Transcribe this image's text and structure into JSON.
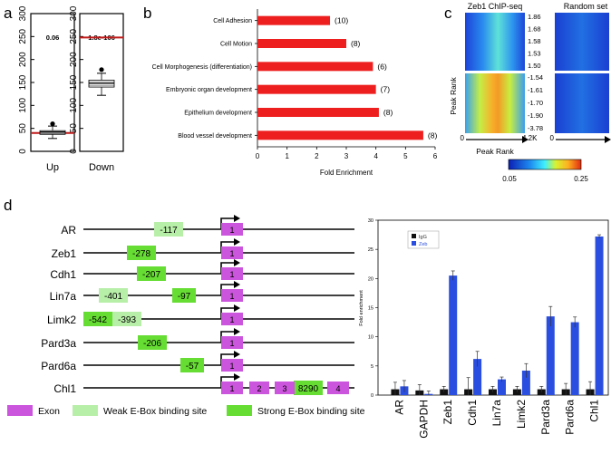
{
  "panel_labels": {
    "a": "a",
    "b": "b",
    "c": "c",
    "d": "d"
  },
  "colors": {
    "red_line": "#c01a1a",
    "bar_red": "#ee1f1f",
    "exon": "#cc55dd",
    "weak_site": "#b8efa8",
    "strong_site": "#66dd33",
    "igg": "#111111",
    "zeb": "#2a4ee0"
  },
  "chart_data": [
    {
      "type": "box",
      "panel": "a",
      "yticks": [
        "0",
        "50",
        "100",
        "150",
        "200",
        "250",
        "300"
      ],
      "ylim": [
        0,
        300
      ],
      "boxes": [
        {
          "name": "Up",
          "pvalue": "0.06",
          "red_line": 40,
          "median": 42,
          "q1": 37,
          "q3": 45,
          "whisker_low": 28,
          "whisker_high": 55,
          "outlier": 60
        },
        {
          "name": "Down",
          "pvalue": "1.8e-106",
          "red_line": 248,
          "median": 148,
          "q1": 140,
          "q3": 155,
          "whisker_low": 122,
          "whisker_high": 170,
          "outlier": 178
        }
      ]
    },
    {
      "type": "bar",
      "panel": "b",
      "orientation": "horizontal",
      "categories": [
        "Cell Adhesion",
        "Cell Motion",
        "Cell Morphogenesis (differentiation)",
        "Embryonic organ development",
        "Epithelium development",
        "Blood vessel development"
      ],
      "values": [
        2.45,
        3.0,
        3.9,
        4.0,
        4.1,
        5.6
      ],
      "counts": [
        "(10)",
        "(8)",
        "(6)",
        "(7)",
        "(8)",
        "(8)"
      ],
      "xlabel": "Fold Enrichment",
      "xticks": [
        "0",
        "1",
        "2",
        "3",
        "4",
        "5",
        "6"
      ],
      "xlim": [
        0,
        6
      ]
    },
    {
      "type": "heatmap",
      "panel": "c",
      "titles": [
        "Zeb1 ChIP-seq",
        "Random set"
      ],
      "upper_labels": [
        "1.86",
        "1.68",
        "1.58",
        "1.53",
        "1.50"
      ],
      "lower_labels": [
        "-1.54",
        "-1.61",
        "-1.70",
        "-1.90",
        "-3.78"
      ],
      "ylabel": "Peak Rank",
      "x_start": "0",
      "x_end": "4.2K",
      "xlabel": "Peak Rank",
      "colorbar_min": "0.05",
      "colorbar_max": "0.25"
    },
    {
      "type": "bar",
      "panel": "d",
      "categories": [
        "AR",
        "GAPDH",
        "Zeb1",
        "Cdh1",
        "Lin7a",
        "Limk2",
        "Pard3a",
        "Pard6a",
        "Chl1"
      ],
      "series": [
        {
          "name": "IgG",
          "values": [
            1.0,
            0.8,
            1.0,
            1.0,
            1.0,
            1.0,
            1.0,
            1.0,
            1.0
          ],
          "errors": [
            1.2,
            1.0,
            0.5,
            2.0,
            0.5,
            0.5,
            0.5,
            1.0,
            1.3
          ]
        },
        {
          "name": "Zeb",
          "values": [
            1.5,
            0.2,
            20.5,
            6.2,
            2.7,
            4.2,
            13.5,
            12.5,
            27.2
          ],
          "errors": [
            1.0,
            0.5,
            0.8,
            1.3,
            0.4,
            1.2,
            1.7,
            0.9,
            0.3
          ]
        }
      ],
      "ylabel": "Fold enrichment",
      "yticks": [
        "0",
        "5",
        "10",
        "15",
        "20",
        "25",
        "30"
      ],
      "ylim": [
        0,
        30
      ]
    }
  ],
  "promoter_map": {
    "genes": [
      {
        "name": "AR",
        "sites": [
          {
            "label": "-117",
            "type": "weak"
          }
        ]
      },
      {
        "name": "Zeb1",
        "sites": [
          {
            "label": "-278",
            "type": "strong"
          }
        ]
      },
      {
        "name": "Cdh1",
        "sites": [
          {
            "label": "-207",
            "type": "strong"
          }
        ]
      },
      {
        "name": "Lin7a",
        "sites": [
          {
            "label": "-401",
            "type": "weak"
          },
          {
            "label": "-97",
            "type": "strong"
          }
        ]
      },
      {
        "name": "Limk2",
        "sites": [
          {
            "label": "-542",
            "type": "strong"
          },
          {
            "label": "-393",
            "type": "weak"
          }
        ]
      },
      {
        "name": "Pard3a",
        "sites": [
          {
            "label": "-206",
            "type": "strong"
          }
        ]
      },
      {
        "name": "Pard6a",
        "sites": [
          {
            "label": "-57",
            "type": "strong"
          }
        ]
      },
      {
        "name": "Chl1",
        "sites": [
          {
            "label": "8290",
            "type": "strong"
          }
        ]
      }
    ],
    "exon_labels": [
      "1",
      "2",
      "3",
      "4"
    ],
    "legend": [
      {
        "label": "Exon",
        "type": "exon"
      },
      {
        "label": "Weak E-Box binding site",
        "type": "weak"
      },
      {
        "label": "Strong E-Box binding site",
        "type": "strong"
      }
    ]
  }
}
